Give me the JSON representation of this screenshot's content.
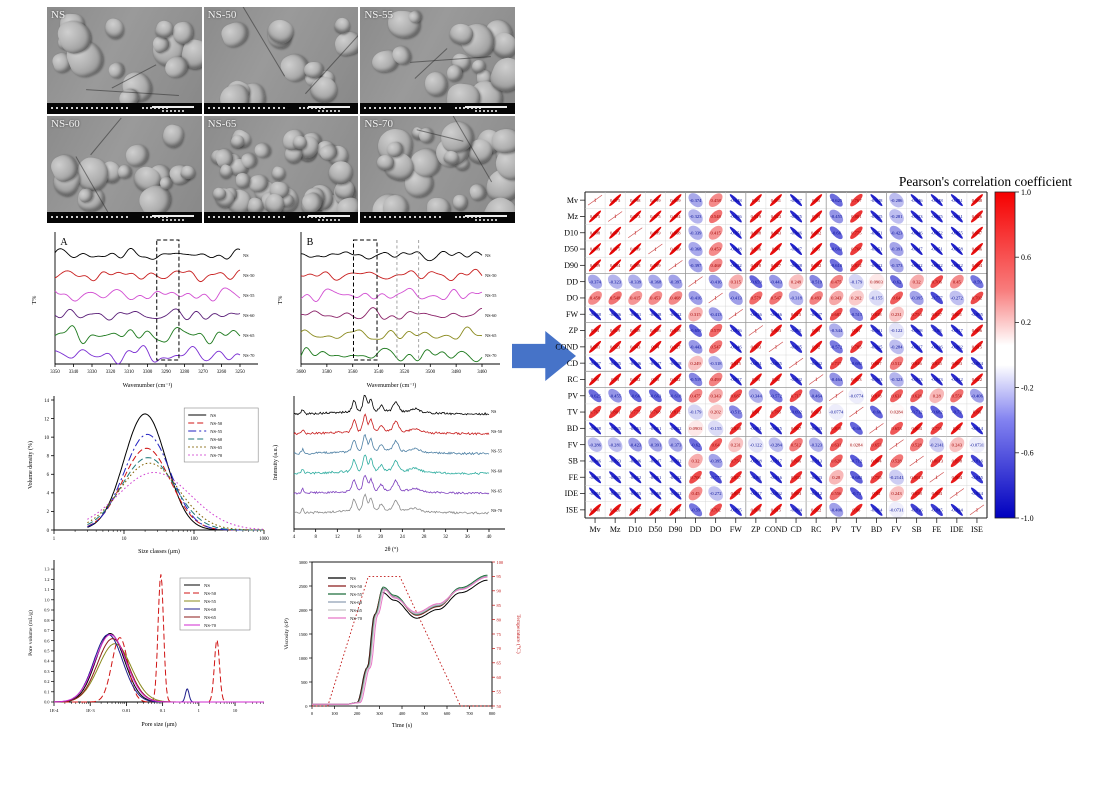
{
  "sem": {
    "tiles": [
      {
        "label": "NS"
      },
      {
        "label": "NS-50"
      },
      {
        "label": "NS-55"
      },
      {
        "label": "NS-60"
      },
      {
        "label": "NS-65"
      },
      {
        "label": "NS-70"
      }
    ]
  },
  "arrow": {
    "color": "#4673c8"
  },
  "chart_data": [
    {
      "id": "ftir_a",
      "type": "line",
      "panel_letter": "A",
      "xlabel": "Wavenumber (cm⁻¹)",
      "ylabel": "T%",
      "x_ticks": [
        3350,
        3340,
        3330,
        3320,
        3310,
        3300,
        3290,
        3280,
        3270,
        3260,
        3250
      ],
      "highlight_box": [
        0.55,
        0.67
      ],
      "series": [
        {
          "name": "NS",
          "color": "#000000",
          "amp": 2.8
        },
        {
          "name": "NS-50",
          "color": "#c81e1e",
          "amp": 3.0
        },
        {
          "name": "NS-55",
          "color": "#d24fd2",
          "amp": 3.2
        },
        {
          "name": "NS-60",
          "color": "#5a1e78",
          "amp": 3.0
        },
        {
          "name": "NS-65",
          "color": "#1e7a1e",
          "amp": 4.2
        },
        {
          "name": "NS-70",
          "color": "#7a2ed2",
          "amp": 4.6
        }
      ]
    },
    {
      "id": "ftir_b",
      "type": "line",
      "panel_letter": "B",
      "xlabel": "Wavenumber (cm⁻¹)",
      "ylabel": "T%",
      "x_ticks": [
        3600,
        3580,
        3560,
        3540,
        3520,
        3500,
        3480,
        3460
      ],
      "highlight_box": [
        0.29,
        0.42
      ],
      "gray_lines": [
        0.53,
        0.65
      ],
      "series": [
        {
          "name": "NS",
          "color": "#000000",
          "amp": 2.4
        },
        {
          "name": "NS-50",
          "color": "#c81e1e",
          "amp": 2.8
        },
        {
          "name": "NS-55",
          "color": "#d24fd2",
          "amp": 3.2
        },
        {
          "name": "NS-60",
          "color": "#8a2268",
          "amp": 3.0
        },
        {
          "name": "NS-65",
          "color": "#8a8a1e",
          "amp": 3.2
        },
        {
          "name": "NS-70",
          "color": "#1e7a1e",
          "amp": 3.6
        }
      ]
    },
    {
      "id": "psd",
      "type": "line",
      "xlabel": "Size classes (μm)",
      "ylabel": "Volume density (%)",
      "x_ticks": [
        1,
        10,
        100,
        1000
      ],
      "y_ticks": [
        0,
        2,
        4,
        6,
        8,
        10,
        12,
        14
      ],
      "series": [
        {
          "name": "NS",
          "color": "#000000",
          "dash": "solid",
          "peak_x_um": 20,
          "peak_y_pct": 12.5,
          "sigma": 0.3
        },
        {
          "name": "NS-50",
          "color": "#d01414",
          "dash": "dash",
          "peak_x_um": 21,
          "peak_y_pct": 8.8,
          "sigma": 0.34
        },
        {
          "name": "NS-55",
          "color": "#2020c0",
          "dash": "dashdot",
          "peak_x_um": 21.5,
          "peak_y_pct": 10.3,
          "sigma": 0.33
        },
        {
          "name": "NS-60",
          "color": "#207a7a",
          "dash": "dash",
          "peak_x_um": 22,
          "peak_y_pct": 7.8,
          "sigma": 0.38
        },
        {
          "name": "NS-65",
          "color": "#806000",
          "dash": "dot",
          "peak_x_um": 23,
          "peak_y_pct": 7.2,
          "sigma": 0.42
        },
        {
          "name": "NS-70",
          "color": "#d040d0",
          "dash": "dot",
          "peak_x_um": 27,
          "peak_y_pct": 6.2,
          "sigma": 0.52
        }
      ]
    },
    {
      "id": "xrd",
      "type": "line",
      "xlabel": "2θ (°)",
      "ylabel": "Intensity (a.u.)",
      "x_ticks": [
        4,
        8,
        12,
        16,
        20,
        24,
        28,
        32,
        36,
        40
      ],
      "peaks_2theta": [
        5.6,
        15.1,
        17.1,
        18.2,
        20.1,
        22.8,
        26.4
      ],
      "series": [
        {
          "name": "NS",
          "color": "#000000"
        },
        {
          "name": "NS-50",
          "color": "#c81e1e"
        },
        {
          "name": "NS-55",
          "color": "#4f81a5"
        },
        {
          "name": "NS-60",
          "color": "#2fada0"
        },
        {
          "name": "NS-65",
          "color": "#7d3fbe"
        },
        {
          "name": "NS-70",
          "color": "#8c8c8c"
        }
      ]
    },
    {
      "id": "pore",
      "type": "line",
      "xlabel": "Pore size (μm)",
      "ylabel": "Pore volume (mL/g)",
      "x_tick_labels": [
        "1E-4",
        "1E-3",
        "0.01",
        "0.1",
        "1",
        "10"
      ],
      "y_max": 1.3,
      "series": [
        {
          "name": "NS",
          "color": "#000000",
          "dash": "solid",
          "bells": [
            [
              -2.45,
              0.4,
              0.67
            ]
          ]
        },
        {
          "name": "NS-50",
          "color": "#d01414",
          "dash": "dash",
          "bells": [
            [
              -2.18,
              0.22,
              0.63
            ],
            [
              -1.05,
              0.075,
              1.25
            ],
            [
              0.5,
              0.07,
              0.61
            ]
          ]
        },
        {
          "name": "NS-55",
          "color": "#8a8a1e",
          "dash": "solid",
          "bells": [
            [
              -2.32,
              0.45,
              0.57
            ]
          ]
        },
        {
          "name": "NS-60",
          "color": "#1e1e8c",
          "dash": "solid",
          "bells": [
            [
              -2.5,
              0.4,
              0.66
            ],
            [
              -0.32,
              0.05,
              0.13
            ]
          ]
        },
        {
          "name": "NS-65",
          "color": "#8b1a1a",
          "dash": "solid",
          "bells": [
            [
              -2.38,
              0.42,
              0.62
            ]
          ]
        },
        {
          "name": "NS-70",
          "color": "#d028d0",
          "dash": "solid",
          "bells": [
            [
              -2.44,
              0.43,
              0.66
            ]
          ]
        }
      ]
    },
    {
      "id": "rva",
      "type": "line",
      "xlabel": "Time (s)",
      "ylabel_left": "Viscosity (cP)",
      "ylabel_right": "Temperature (°C)",
      "x_ticks": [
        0,
        100,
        200,
        300,
        400,
        500,
        600,
        700,
        800
      ],
      "y_left_ticks": [
        0,
        500,
        1000,
        1500,
        2000,
        2500,
        3000
      ],
      "y_right_ticks": [
        50,
        55,
        60,
        65,
        70,
        75,
        80,
        85,
        90,
        95,
        100
      ],
      "temperature_color": "#c01414",
      "temperature_profile": [
        [
          0,
          50
        ],
        [
          70,
          50
        ],
        [
          250,
          95
        ],
        [
          390,
          95
        ],
        [
          660,
          50
        ],
        [
          800,
          50
        ]
      ],
      "series": [
        {
          "name": "NS",
          "color": "#000000",
          "peak": 2370,
          "trough": 1830,
          "final": 2620,
          "shift": 0
        },
        {
          "name": "NS-50",
          "color": "#8b1a1a",
          "peak": 2450,
          "trough": 1890,
          "final": 2700,
          "shift": 2
        },
        {
          "name": "NS-55",
          "color": "#1e6e3c",
          "peak": 2480,
          "trough": 1905,
          "final": 2725,
          "shift": 4
        },
        {
          "name": "NS-60",
          "color": "#8f9fb4",
          "peak": 2445,
          "trough": 1915,
          "final": 2700,
          "shift": 6
        },
        {
          "name": "NS-65",
          "color": "#c4c4c4",
          "peak": 2430,
          "trough": 1930,
          "final": 2690,
          "shift": 8
        },
        {
          "name": "NS-70",
          "color": "#e878c8",
          "peak": 2420,
          "trough": 1950,
          "final": 2685,
          "shift": 14
        }
      ]
    },
    {
      "id": "correlation",
      "type": "heatmap",
      "title": "Pearson's correlation coefficient",
      "labels": [
        "Mv",
        "Mz",
        "D10",
        "D50",
        "D90",
        "DD",
        "DO",
        "FW",
        "ZP",
        "COND",
        "CD",
        "RC",
        "PV",
        "TV",
        "BD",
        "FV",
        "SB",
        "FE",
        "IDE",
        "ISE"
      ],
      "colorbar_ticks": [
        1.0,
        0.6,
        0.2,
        -0.2,
        -0.6,
        -1.0
      ],
      "positive_color": "#e60000",
      "negative_color": "#1616c8",
      "group_separators_after": [
        5,
        8,
        11,
        12,
        15
      ],
      "upper_triangle": [
        [
          0.975,
          0.998,
          0.999,
          0.959,
          -0.374,
          0.458,
          -0.948,
          0.94,
          0.951,
          -0.947,
          0.95,
          -0.625,
          0.767,
          -0.948,
          -0.286,
          -0.946,
          -0.948,
          -0.951,
          0.948
        ],
        [
          0.973,
          0.975,
          0.984,
          -0.323,
          0.548,
          -0.926,
          0.919,
          0.923,
          -0.925,
          0.93,
          -0.455,
          0.801,
          -0.925,
          -0.281,
          -0.923,
          -0.925,
          -0.931,
          0.926
        ],
        [
          0.999,
          0.968,
          -0.339,
          0.415,
          -0.951,
          0.938,
          0.943,
          -0.946,
          0.952,
          -0.66,
          0.775,
          -0.951,
          -0.423,
          -0.946,
          -0.952,
          -0.955,
          0.947
        ],
        [
          0.969,
          -0.368,
          0.453,
          -0.948,
          0.936,
          0.94,
          -0.947,
          0.95,
          -0.663,
          0.768,
          -0.951,
          -0.391,
          -0.947,
          -0.951,
          -0.958,
          0.946
        ],
        [
          -0.397,
          0.468,
          -0.932,
          0.918,
          0.927,
          -0.928,
          0.932,
          -0.618,
          0.812,
          -0.932,
          -0.373,
          -0.932,
          -0.932,
          -0.932,
          0.934
        ],
        [
          -0.416,
          0.315,
          -0.659,
          -0.443,
          0.249,
          -0.519,
          0.475,
          -0.179,
          0.0903,
          -0.62,
          0.32,
          0.706,
          0.45,
          -0.59
        ],
        [
          -0.413,
          0.579,
          0.547,
          -0.318,
          0.493,
          0.343,
          0.202,
          -0.155,
          0.64,
          -0.395,
          -0.777,
          -0.272,
          0.702
        ],
        [
          -0.916,
          -0.946,
          0.915,
          -0.937,
          0.687,
          -0.515,
          0.838,
          0.231,
          0.754,
          0.857,
          0.891,
          -0.895
        ],
        [
          0.903,
          -0.891,
          0.93,
          -0.344,
          0.91,
          -0.901,
          -0.122,
          -0.908,
          -0.88,
          -0.917,
          0.906
        ],
        [
          -0.885,
          0.92,
          -0.572,
          0.785,
          -0.925,
          -0.284,
          -0.917,
          -0.916,
          -0.902,
          0.915
        ],
        [
          -0.902,
          0.717,
          -0.692,
          0.897,
          0.512,
          0.846,
          0.835,
          0.893,
          -0.884
        ],
        [
          -0.464,
          0.913,
          -0.903,
          -0.323,
          -0.913,
          -0.923,
          -0.912,
          0.922
        ],
        [
          -0.0774,
          0.818,
          0.631,
          0.628,
          0.28,
          0.556,
          -0.406
        ],
        [
          -0.66,
          0.0284,
          -0.712,
          -0.682,
          -0.73,
          0.86
        ],
        [
          0.653,
          0.904,
          0.755,
          0.92,
          -0.914
        ],
        [
          0.528,
          -0.2141,
          0.243,
          -0.0731
        ],
        [
          0.8013,
          0.858,
          -0.816
        ],
        [
          0.904,
          -0.845
        ],
        [
          -0.934
        ]
      ]
    }
  ]
}
